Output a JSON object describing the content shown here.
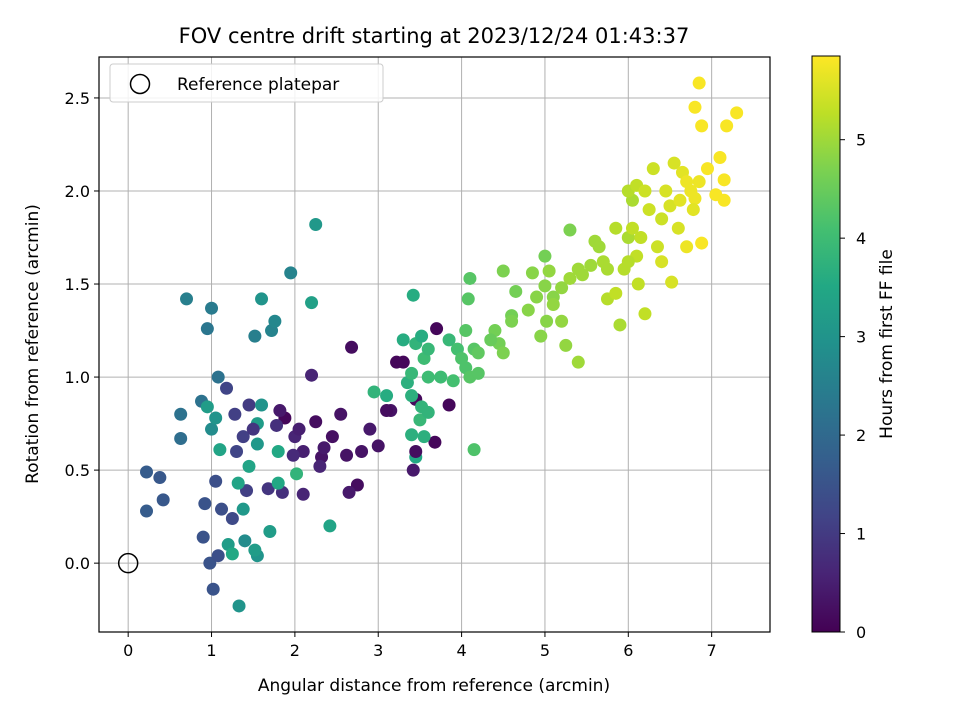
{
  "chart_data": {
    "type": "scatter",
    "title": "FOV centre drift starting at 2023/12/24 01:43:37",
    "xlabel": "Angular distance from reference (arcmin)",
    "ylabel": "Rotation from reference (arcmin)",
    "xlim": [
      -0.35,
      7.7
    ],
    "ylim": [
      -0.37,
      2.72
    ],
    "xticks": [
      "0",
      "1",
      "2",
      "3",
      "4",
      "5",
      "6",
      "7"
    ],
    "yticks": [
      "0.0",
      "0.5",
      "1.0",
      "1.5",
      "2.0",
      "2.5"
    ],
    "grid": true,
    "legend": {
      "placement": "top-left",
      "entries": [
        "Reference platepar"
      ]
    },
    "reference_point": {
      "x": 0,
      "y": 0
    },
    "colorbar": {
      "label": "Hours from first FF file",
      "range": [
        0,
        5.85
      ],
      "ticks": [
        "0",
        "1",
        "2",
        "3",
        "4",
        "5"
      ],
      "colormap": "viridis"
    },
    "points": [
      {
        "x": 1.88,
        "y": 0.78,
        "c": 0.1
      },
      {
        "x": 2.25,
        "y": 0.76,
        "c": 0.2
      },
      {
        "x": 2.45,
        "y": 0.68,
        "c": 0.25
      },
      {
        "x": 2.62,
        "y": 0.58,
        "c": 0.3
      },
      {
        "x": 2.32,
        "y": 0.57,
        "c": 0.3
      },
      {
        "x": 2.55,
        "y": 0.8,
        "c": 0.3
      },
      {
        "x": 2.75,
        "y": 0.42,
        "c": 0.2
      },
      {
        "x": 2.1,
        "y": 0.6,
        "c": 0.5
      },
      {
        "x": 2.0,
        "y": 0.68,
        "c": 0.6
      },
      {
        "x": 2.68,
        "y": 1.16,
        "c": 0.2
      },
      {
        "x": 3.22,
        "y": 1.08,
        "c": 0.1
      },
      {
        "x": 3.3,
        "y": 1.08,
        "c": 0.1
      },
      {
        "x": 3.7,
        "y": 1.26,
        "c": 0.1
      },
      {
        "x": 3.85,
        "y": 0.85,
        "c": 0.1
      },
      {
        "x": 3.68,
        "y": 0.65,
        "c": 0.1
      },
      {
        "x": 3.45,
        "y": 0.88,
        "c": 0.15
      },
      {
        "x": 3.42,
        "y": 0.5,
        "c": 0.4
      },
      {
        "x": 3.15,
        "y": 0.82,
        "c": 0.3
      },
      {
        "x": 3.0,
        "y": 0.63,
        "c": 0.3
      },
      {
        "x": 2.9,
        "y": 0.72,
        "c": 0.4
      },
      {
        "x": 2.65,
        "y": 0.38,
        "c": 0.4
      },
      {
        "x": 2.3,
        "y": 0.52,
        "c": 0.6
      },
      {
        "x": 2.1,
        "y": 0.37,
        "c": 0.6
      },
      {
        "x": 2.2,
        "y": 1.01,
        "c": 0.6
      },
      {
        "x": 1.98,
        "y": 0.58,
        "c": 0.7
      },
      {
        "x": 1.85,
        "y": 0.38,
        "c": 0.8
      },
      {
        "x": 1.78,
        "y": 0.74,
        "c": 0.8
      },
      {
        "x": 1.68,
        "y": 0.4,
        "c": 0.9
      },
      {
        "x": 1.45,
        "y": 0.85,
        "c": 1.0
      },
      {
        "x": 1.42,
        "y": 0.39,
        "c": 1.1
      },
      {
        "x": 1.38,
        "y": 0.68,
        "c": 1.1
      },
      {
        "x": 1.28,
        "y": 0.8,
        "c": 1.1
      },
      {
        "x": 1.18,
        "y": 0.94,
        "c": 1.2
      },
      {
        "x": 1.3,
        "y": 0.6,
        "c": 1.2
      },
      {
        "x": 1.25,
        "y": 0.24,
        "c": 1.3
      },
      {
        "x": 1.12,
        "y": 0.29,
        "c": 1.4
      },
      {
        "x": 1.05,
        "y": 0.44,
        "c": 1.4
      },
      {
        "x": 0.92,
        "y": 0.32,
        "c": 1.5
      },
      {
        "x": 0.9,
        "y": 0.14,
        "c": 1.5
      },
      {
        "x": 0.98,
        "y": 0.0,
        "c": 1.5
      },
      {
        "x": 1.02,
        "y": -0.14,
        "c": 1.5
      },
      {
        "x": 1.08,
        "y": 0.04,
        "c": 1.4
      },
      {
        "x": 0.42,
        "y": 0.34,
        "c": 1.6
      },
      {
        "x": 0.38,
        "y": 0.46,
        "c": 1.6
      },
      {
        "x": 0.22,
        "y": 0.49,
        "c": 1.7
      },
      {
        "x": 0.22,
        "y": 0.28,
        "c": 1.7
      },
      {
        "x": 0.63,
        "y": 0.67,
        "c": 2.1
      },
      {
        "x": 0.63,
        "y": 0.8,
        "c": 2.2
      },
      {
        "x": 0.88,
        "y": 0.87,
        "c": 2.2
      },
      {
        "x": 1.08,
        "y": 1.0,
        "c": 2.2
      },
      {
        "x": 0.95,
        "y": 1.26,
        "c": 2.3
      },
      {
        "x": 1.0,
        "y": 1.37,
        "c": 2.4
      },
      {
        "x": 0.7,
        "y": 1.42,
        "c": 2.5
      },
      {
        "x": 1.52,
        "y": 1.22,
        "c": 2.5
      },
      {
        "x": 1.72,
        "y": 1.25,
        "c": 2.6
      },
      {
        "x": 1.76,
        "y": 1.3,
        "c": 2.7
      },
      {
        "x": 1.6,
        "y": 1.42,
        "c": 3.0
      },
      {
        "x": 1.95,
        "y": 1.56,
        "c": 2.6
      },
      {
        "x": 2.2,
        "y": 1.4,
        "c": 3.3
      },
      {
        "x": 2.25,
        "y": 1.82,
        "c": 3.1
      },
      {
        "x": 1.2,
        "y": 0.1,
        "c": 3.2
      },
      {
        "x": 1.4,
        "y": 0.12,
        "c": 2.8
      },
      {
        "x": 1.55,
        "y": 0.04,
        "c": 3.0
      },
      {
        "x": 1.52,
        "y": 0.07,
        "c": 3.2
      },
      {
        "x": 1.33,
        "y": -0.23,
        "c": 3.0
      },
      {
        "x": 1.7,
        "y": 0.17,
        "c": 3.2
      },
      {
        "x": 1.8,
        "y": 0.43,
        "c": 3.5
      },
      {
        "x": 1.45,
        "y": 0.52,
        "c": 3.4
      },
      {
        "x": 1.55,
        "y": 0.64,
        "c": 3.1
      },
      {
        "x": 1.55,
        "y": 0.75,
        "c": 3.2
      },
      {
        "x": 1.8,
        "y": 0.6,
        "c": 3.5
      },
      {
        "x": 2.02,
        "y": 0.48,
        "c": 3.8
      },
      {
        "x": 2.42,
        "y": 0.2,
        "c": 3.4
      },
      {
        "x": 1.32,
        "y": 0.43,
        "c": 3.4
      },
      {
        "x": 1.38,
        "y": 0.29,
        "c": 3.1
      },
      {
        "x": 1.25,
        "y": 0.05,
        "c": 3.5
      },
      {
        "x": 1.0,
        "y": 0.72,
        "c": 2.8
      },
      {
        "x": 1.05,
        "y": 0.78,
        "c": 3.0
      },
      {
        "x": 0.95,
        "y": 0.84,
        "c": 3.2
      },
      {
        "x": 1.1,
        "y": 0.61,
        "c": 3.4
      },
      {
        "x": 2.95,
        "y": 0.92,
        "c": 3.8
      },
      {
        "x": 3.1,
        "y": 0.9,
        "c": 3.6
      },
      {
        "x": 3.3,
        "y": 1.2,
        "c": 3.6
      },
      {
        "x": 3.45,
        "y": 1.18,
        "c": 3.8
      },
      {
        "x": 3.35,
        "y": 0.97,
        "c": 3.7
      },
      {
        "x": 3.42,
        "y": 1.44,
        "c": 3.6
      },
      {
        "x": 3.52,
        "y": 1.22,
        "c": 3.6
      },
      {
        "x": 3.4,
        "y": 0.69,
        "c": 3.7
      },
      {
        "x": 3.45,
        "y": 0.57,
        "c": 3.5
      },
      {
        "x": 3.55,
        "y": 0.68,
        "c": 3.7
      },
      {
        "x": 3.5,
        "y": 0.77,
        "c": 3.9
      },
      {
        "x": 3.52,
        "y": 0.84,
        "c": 3.8
      },
      {
        "x": 3.6,
        "y": 0.81,
        "c": 3.8
      },
      {
        "x": 3.4,
        "y": 1.02,
        "c": 3.9
      },
      {
        "x": 3.55,
        "y": 1.1,
        "c": 4.0
      },
      {
        "x": 3.6,
        "y": 1.0,
        "c": 4.0
      },
      {
        "x": 3.85,
        "y": 1.2,
        "c": 3.9
      },
      {
        "x": 3.95,
        "y": 1.15,
        "c": 4.1
      },
      {
        "x": 4.0,
        "y": 1.1,
        "c": 4.2
      },
      {
        "x": 3.9,
        "y": 0.98,
        "c": 4.1
      },
      {
        "x": 4.05,
        "y": 1.05,
        "c": 4.2
      },
      {
        "x": 4.1,
        "y": 1.0,
        "c": 4.3
      },
      {
        "x": 4.2,
        "y": 1.02,
        "c": 4.3
      },
      {
        "x": 4.15,
        "y": 0.61,
        "c": 4.2
      },
      {
        "x": 4.05,
        "y": 1.25,
        "c": 4.3
      },
      {
        "x": 4.15,
        "y": 1.15,
        "c": 4.3
      },
      {
        "x": 4.2,
        "y": 1.13,
        "c": 4.4
      },
      {
        "x": 4.1,
        "y": 1.53,
        "c": 4.3
      },
      {
        "x": 4.08,
        "y": 1.42,
        "c": 4.3
      },
      {
        "x": 4.4,
        "y": 1.25,
        "c": 4.6
      },
      {
        "x": 4.45,
        "y": 1.18,
        "c": 4.6
      },
      {
        "x": 4.5,
        "y": 1.13,
        "c": 4.7
      },
      {
        "x": 4.6,
        "y": 1.33,
        "c": 4.6
      },
      {
        "x": 4.5,
        "y": 1.57,
        "c": 4.7
      },
      {
        "x": 4.65,
        "y": 1.46,
        "c": 4.6
      },
      {
        "x": 4.85,
        "y": 1.56,
        "c": 4.8
      },
      {
        "x": 4.9,
        "y": 1.43,
        "c": 4.8
      },
      {
        "x": 5.0,
        "y": 1.65,
        "c": 4.6
      },
      {
        "x": 5.0,
        "y": 1.49,
        "c": 4.8
      },
      {
        "x": 5.05,
        "y": 1.57,
        "c": 4.9
      },
      {
        "x": 5.1,
        "y": 1.43,
        "c": 4.8
      },
      {
        "x": 4.95,
        "y": 1.22,
        "c": 4.8
      },
      {
        "x": 5.02,
        "y": 1.3,
        "c": 4.8
      },
      {
        "x": 5.2,
        "y": 1.3,
        "c": 4.9
      },
      {
        "x": 5.25,
        "y": 1.17,
        "c": 4.9
      },
      {
        "x": 5.4,
        "y": 1.08,
        "c": 5.0
      },
      {
        "x": 5.2,
        "y": 1.48,
        "c": 4.9
      },
      {
        "x": 5.3,
        "y": 1.53,
        "c": 5.0
      },
      {
        "x": 5.3,
        "y": 1.79,
        "c": 4.7
      },
      {
        "x": 5.4,
        "y": 1.58,
        "c": 5.0
      },
      {
        "x": 5.55,
        "y": 1.6,
        "c": 5.0
      },
      {
        "x": 5.6,
        "y": 1.73,
        "c": 5.0
      },
      {
        "x": 5.65,
        "y": 1.7,
        "c": 5.0
      },
      {
        "x": 5.75,
        "y": 1.58,
        "c": 5.1
      },
      {
        "x": 5.75,
        "y": 1.42,
        "c": 5.2
      },
      {
        "x": 5.85,
        "y": 1.45,
        "c": 5.3
      },
      {
        "x": 5.9,
        "y": 1.28,
        "c": 5.1
      },
      {
        "x": 5.85,
        "y": 1.8,
        "c": 5.2
      },
      {
        "x": 6.0,
        "y": 1.75,
        "c": 5.1
      },
      {
        "x": 5.95,
        "y": 1.58,
        "c": 5.2
      },
      {
        "x": 6.05,
        "y": 1.95,
        "c": 5.1
      },
      {
        "x": 6.0,
        "y": 2.0,
        "c": 5.2
      },
      {
        "x": 6.1,
        "y": 2.03,
        "c": 5.3
      },
      {
        "x": 6.05,
        "y": 1.8,
        "c": 5.3
      },
      {
        "x": 6.1,
        "y": 1.65,
        "c": 5.3
      },
      {
        "x": 6.12,
        "y": 1.5,
        "c": 5.3
      },
      {
        "x": 6.2,
        "y": 1.34,
        "c": 5.3
      },
      {
        "x": 6.25,
        "y": 1.9,
        "c": 5.4
      },
      {
        "x": 6.2,
        "y": 2.0,
        "c": 5.4
      },
      {
        "x": 6.3,
        "y": 2.12,
        "c": 5.4
      },
      {
        "x": 6.35,
        "y": 1.7,
        "c": 5.4
      },
      {
        "x": 6.4,
        "y": 1.62,
        "c": 5.5
      },
      {
        "x": 6.45,
        "y": 2.0,
        "c": 5.5
      },
      {
        "x": 6.5,
        "y": 1.92,
        "c": 5.5
      },
      {
        "x": 6.55,
        "y": 2.15,
        "c": 5.5
      },
      {
        "x": 6.52,
        "y": 1.51,
        "c": 5.5
      },
      {
        "x": 6.6,
        "y": 1.8,
        "c": 5.5
      },
      {
        "x": 6.65,
        "y": 2.1,
        "c": 5.6
      },
      {
        "x": 6.7,
        "y": 1.7,
        "c": 5.7
      },
      {
        "x": 6.75,
        "y": 2.0,
        "c": 5.7
      },
      {
        "x": 6.8,
        "y": 1.96,
        "c": 5.7
      },
      {
        "x": 6.85,
        "y": 2.05,
        "c": 5.7
      },
      {
        "x": 6.8,
        "y": 2.45,
        "c": 5.8
      },
      {
        "x": 6.88,
        "y": 2.35,
        "c": 5.8
      },
      {
        "x": 6.85,
        "y": 2.58,
        "c": 5.8
      },
      {
        "x": 6.95,
        "y": 2.12,
        "c": 5.8
      },
      {
        "x": 7.05,
        "y": 1.98,
        "c": 5.8
      },
      {
        "x": 7.1,
        "y": 2.18,
        "c": 5.8
      },
      {
        "x": 7.15,
        "y": 2.06,
        "c": 5.8
      },
      {
        "x": 7.15,
        "y": 1.95,
        "c": 5.8
      },
      {
        "x": 7.18,
        "y": 2.35,
        "c": 5.8
      },
      {
        "x": 7.3,
        "y": 2.42,
        "c": 5.8
      },
      {
        "x": 6.88,
        "y": 1.72,
        "c": 5.8
      },
      {
        "x": 6.78,
        "y": 1.9,
        "c": 5.6
      },
      {
        "x": 6.7,
        "y": 2.05,
        "c": 5.7
      },
      {
        "x": 6.62,
        "y": 1.95,
        "c": 5.6
      },
      {
        "x": 6.4,
        "y": 1.85,
        "c": 5.4
      },
      {
        "x": 6.15,
        "y": 1.75,
        "c": 5.3
      },
      {
        "x": 6.0,
        "y": 1.62,
        "c": 5.2
      },
      {
        "x": 5.7,
        "y": 1.62,
        "c": 5.1
      },
      {
        "x": 5.45,
        "y": 1.55,
        "c": 5.0
      },
      {
        "x": 5.1,
        "y": 1.39,
        "c": 4.9
      },
      {
        "x": 4.8,
        "y": 1.36,
        "c": 4.8
      },
      {
        "x": 4.6,
        "y": 1.3,
        "c": 4.7
      },
      {
        "x": 4.35,
        "y": 1.2,
        "c": 4.5
      },
      {
        "x": 3.75,
        "y": 1.0,
        "c": 4.0
      },
      {
        "x": 3.6,
        "y": 1.15,
        "c": 3.9
      },
      {
        "x": 3.4,
        "y": 0.9,
        "c": 3.7
      },
      {
        "x": 1.6,
        "y": 0.85,
        "c": 3.0
      },
      {
        "x": 1.5,
        "y": 0.72,
        "c": 0.9
      },
      {
        "x": 1.82,
        "y": 0.82,
        "c": 0.4
      },
      {
        "x": 2.05,
        "y": 0.72,
        "c": 0.5
      },
      {
        "x": 2.35,
        "y": 0.62,
        "c": 0.4
      },
      {
        "x": 2.8,
        "y": 0.6,
        "c": 0.3
      },
      {
        "x": 3.1,
        "y": 0.82,
        "c": 0.2
      },
      {
        "x": 3.45,
        "y": 0.6,
        "c": 0.2
      }
    ]
  }
}
